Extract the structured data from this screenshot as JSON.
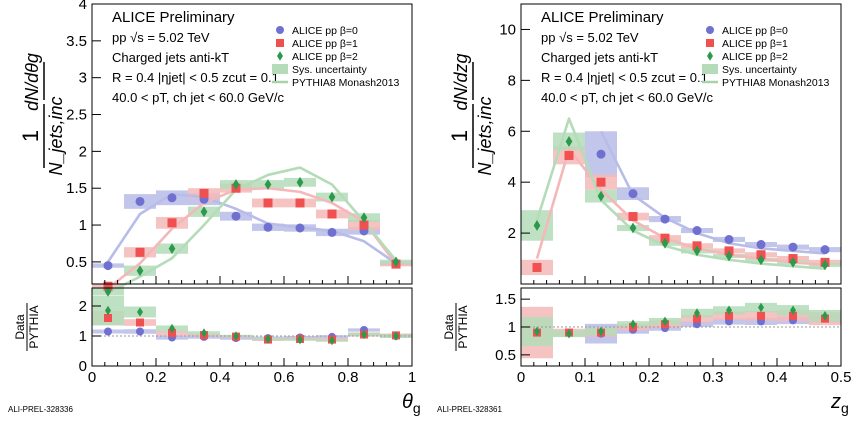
{
  "chart_data": [
    {
      "type": "scatter",
      "info": [
        "ALICE Preliminary",
        "pp √s = 5.02 TeV",
        "Charged jets   anti-kT",
        "R = 0.4  |ηjet| < 0.5  zcut = 0.1",
        "40.0 < pT, ch jet < 60.0 GeV/c"
      ],
      "ylabel": "1/N_jets,inc dN/dθg",
      "xlabel": "θg",
      "ratio_ylabel": "Data/PYTHIA",
      "watermark": "ALI-PREL-328336",
      "xlim": [
        0,
        1
      ],
      "ylim": [
        0.2,
        4
      ],
      "ratio_ylim": [
        0,
        2.6
      ],
      "xticks": [
        0,
        0.2,
        0.4,
        0.6,
        0.8,
        1
      ],
      "xtick_labels": [
        "0",
        "0.2",
        "0.4",
        "0.6",
        "0.8",
        "1"
      ],
      "yticks": [
        0.5,
        1,
        1.5,
        2,
        2.5,
        3,
        3.5,
        4
      ],
      "ytick_labels": [
        "0.5",
        "1",
        "1.5",
        "2",
        "2.5",
        "3",
        "3.5",
        "4"
      ],
      "ratio_yticks": [
        0,
        1,
        2
      ],
      "ratio_ytick_labels": [
        "0",
        "1",
        "2"
      ],
      "x": [
        0.05,
        0.15,
        0.25,
        0.35,
        0.45,
        0.55,
        0.65,
        0.75,
        0.85,
        0.95
      ],
      "series": [
        {
          "name": "ALICE pp β=0",
          "marker": "circle",
          "color": "#7070d0",
          "band": "#b8bce8",
          "values": [
            0.45,
            1.32,
            1.37,
            1.35,
            1.12,
            0.97,
            0.96,
            0.9,
            0.92,
            0.48
          ],
          "sys": [
            0.03,
            0.1,
            0.1,
            0.08,
            0.06,
            0.05,
            0.05,
            0.05,
            0.05,
            0.03
          ],
          "pythia": [
            0.5,
            1.15,
            1.42,
            1.38,
            1.22,
            1.02,
            0.97,
            0.92,
            0.78,
            0.48
          ],
          "ratio": [
            1.15,
            1.15,
            0.95,
            0.97,
            0.93,
            0.93,
            0.95,
            0.97,
            1.2,
            1.0
          ]
        },
        {
          "name": "ALICE pp β=1",
          "marker": "square",
          "color": "#f05050",
          "band": "#f5b8b8",
          "values": [
            0.17,
            0.63,
            1.03,
            1.43,
            1.5,
            1.3,
            1.3,
            1.15,
            1.0,
            0.47
          ],
          "sys": [
            0.04,
            0.07,
            0.08,
            0.07,
            0.06,
            0.06,
            0.06,
            0.06,
            0.07,
            0.03
          ],
          "pythia": [
            0.14,
            0.48,
            0.95,
            1.3,
            1.48,
            1.5,
            1.45,
            1.3,
            1.05,
            0.47
          ],
          "ratio": [
            1.6,
            1.45,
            1.1,
            1.03,
            0.98,
            0.88,
            0.9,
            0.88,
            1.05,
            1.02
          ]
        },
        {
          "name": "ALICE pp β=2",
          "marker": "diamond",
          "color": "#2c9a4c",
          "band": "#b4dcb8",
          "values": [
            0.1,
            0.38,
            0.68,
            1.18,
            1.55,
            1.55,
            1.58,
            1.38,
            1.1,
            0.5
          ],
          "sys": [
            0.05,
            0.07,
            0.07,
            0.07,
            0.06,
            0.06,
            0.06,
            0.06,
            0.06,
            0.03
          ],
          "pythia": [
            0.08,
            0.3,
            0.55,
            1.0,
            1.48,
            1.68,
            1.78,
            1.55,
            1.05,
            0.52
          ],
          "ratio": [
            1.85,
            1.8,
            1.25,
            1.1,
            1.0,
            0.9,
            0.88,
            0.85,
            1.05,
            1.0
          ]
        }
      ],
      "legend": [
        "ALICE pp β=0",
        "ALICE pp β=1",
        "ALICE pp β=2",
        "Sys. uncertainty",
        "PYTHIA8 Monash2013"
      ]
    },
    {
      "type": "scatter",
      "info": [
        "ALICE Preliminary",
        "pp √s = 5.02 TeV",
        "Charged jets   anti-kT",
        "R = 0.4  |ηjet| < 0.5  zcut = 0.1",
        "40.0 < pT, ch jet < 60.0 GeV/c"
      ],
      "ylabel": "1/N_jets,inc dN/dzg",
      "xlabel": "zg",
      "ratio_ylabel": "Data/PYTHIA",
      "watermark": "ALI-PREL-328361",
      "xlim": [
        0,
        0.5
      ],
      "ylim": [
        0,
        11
      ],
      "ratio_ylim": [
        0.3,
        1.7
      ],
      "xticks": [
        0,
        0.1,
        0.2,
        0.3,
        0.4,
        0.5
      ],
      "xtick_labels": [
        "0",
        "0.1",
        "0.2",
        "0.3",
        "0.4",
        "0.5"
      ],
      "yticks": [
        2,
        4,
        6,
        8,
        10
      ],
      "ytick_labels": [
        "2",
        "4",
        "6",
        "8",
        "10"
      ],
      "ratio_yticks": [
        0.5,
        1,
        1.5
      ],
      "ratio_ytick_labels": [
        "0.5",
        "1",
        "1.5"
      ],
      "x": [
        0.025,
        0.075,
        0.125,
        0.175,
        0.225,
        0.275,
        0.325,
        0.375,
        0.425,
        0.475
      ],
      "series": [
        {
          "name": "ALICE pp β=0",
          "marker": "circle",
          "color": "#7070d0",
          "band": "#b8bce8",
          "values": [
            null,
            null,
            5.1,
            3.55,
            2.55,
            2.1,
            1.75,
            1.55,
            1.45,
            1.35
          ],
          "sys": [
            0,
            0,
            0.9,
            0.25,
            0.12,
            0.1,
            0.1,
            0.1,
            0.1,
            0.1
          ],
          "pythia": [
            null,
            null,
            6.0,
            3.5,
            2.6,
            2.0,
            1.6,
            1.4,
            1.3,
            1.2
          ],
          "ratio": [
            null,
            null,
            0.88,
            0.95,
            0.98,
            1.05,
            1.1,
            1.1,
            1.12,
            1.15
          ]
        },
        {
          "name": "ALICE pp β=1",
          "marker": "square",
          "color": "#f05050",
          "band": "#f5b8b8",
          "values": [
            0.65,
            5.05,
            4.0,
            2.65,
            1.8,
            1.5,
            1.3,
            1.15,
            1.0,
            0.85
          ],
          "sys": [
            0.3,
            0.35,
            0.3,
            0.15,
            0.12,
            0.1,
            0.1,
            0.1,
            0.1,
            0.1
          ],
          "pythia": [
            1.0,
            5.3,
            3.7,
            2.5,
            1.8,
            1.4,
            1.15,
            1.0,
            0.85,
            0.75
          ],
          "ratio": [
            0.9,
            0.9,
            0.9,
            1.0,
            1.05,
            1.15,
            1.2,
            1.2,
            1.2,
            1.15
          ]
        },
        {
          "name": "ALICE pp β=2",
          "marker": "diamond",
          "color": "#2c9a4c",
          "band": "#b4dcb8",
          "values": [
            2.3,
            5.6,
            3.45,
            2.2,
            1.6,
            1.3,
            1.1,
            0.95,
            0.85,
            0.75
          ],
          "sys": [
            0.6,
            0.35,
            0.25,
            0.12,
            0.1,
            0.1,
            0.08,
            0.08,
            0.08,
            0.08
          ],
          "pythia": [
            2.5,
            6.5,
            3.3,
            2.1,
            1.5,
            1.15,
            0.95,
            0.8,
            0.7,
            0.6
          ],
          "ratio": [
            0.92,
            0.88,
            0.92,
            1.05,
            1.1,
            1.25,
            1.3,
            1.35,
            1.3,
            1.2
          ]
        }
      ],
      "legend": [
        "ALICE pp β=0",
        "ALICE pp β=1",
        "ALICE pp β=2",
        "Sys. uncertainty",
        "PYTHIA8 Monash2013"
      ]
    }
  ]
}
